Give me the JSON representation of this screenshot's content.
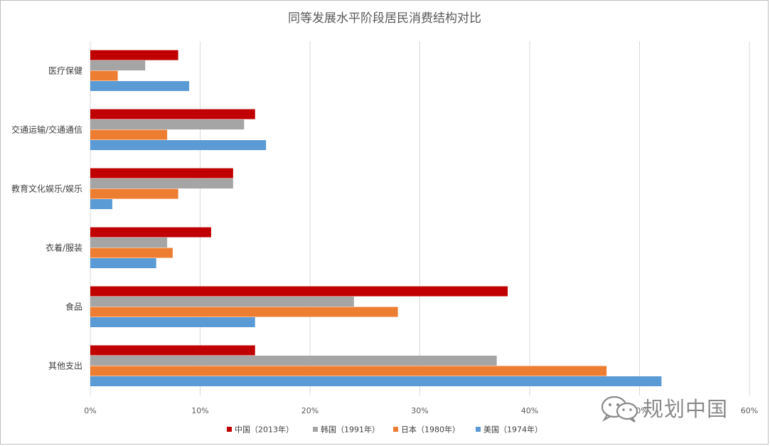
{
  "chart_data": {
    "type": "bar",
    "orientation": "horizontal",
    "title": "同等发展水平阶段居民消费结构对比",
    "categories": [
      "医疗保健",
      "交通运输/交通通信",
      "教育文化娱乐/娱乐",
      "衣着/服装",
      "食品",
      "其他支出"
    ],
    "series": [
      {
        "name": "中国（2013年）",
        "color": "#c00000",
        "values": [
          8,
          15,
          13,
          11,
          38,
          15
        ]
      },
      {
        "name": "韩国（1991年）",
        "color": "#a5a5a5",
        "values": [
          5,
          14,
          13,
          7,
          24,
          37
        ]
      },
      {
        "name": "日本（1980年）",
        "color": "#ed7d31",
        "values": [
          2.5,
          7,
          8,
          7.5,
          28,
          47
        ]
      },
      {
        "name": "美国（1974年）",
        "color": "#5b9bd5",
        "values": [
          9,
          16,
          2,
          6,
          15,
          52
        ]
      }
    ],
    "xlim": [
      0,
      60
    ],
    "xticks": [
      "0%",
      "10%",
      "20%",
      "30%",
      "40%",
      "50%",
      "60%"
    ],
    "grid": true,
    "legend_position": "bottom"
  },
  "watermark": {
    "text": "规划中国",
    "icon": "wechat-icon"
  }
}
